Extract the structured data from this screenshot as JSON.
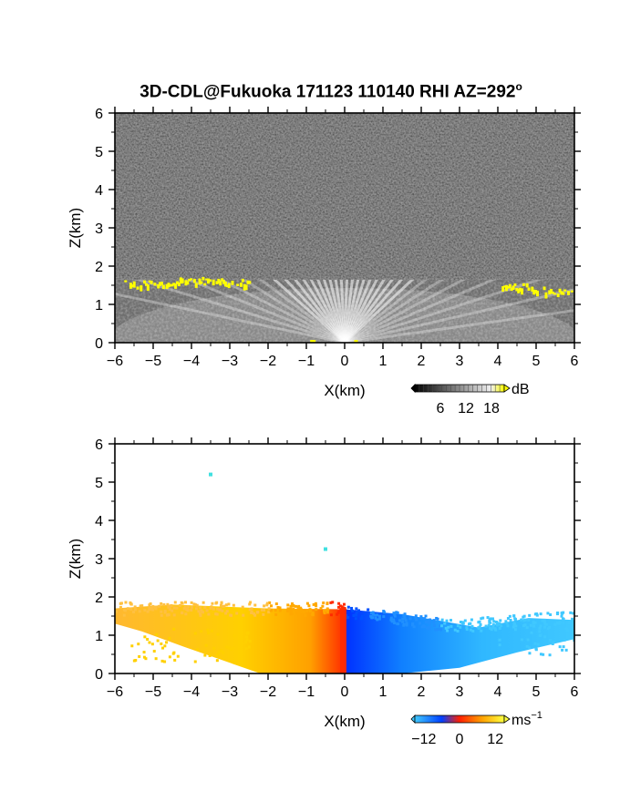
{
  "chart_data": [
    {
      "type": "heatmap",
      "title": "3D-CDL@Fukuoka 171123 110140 RHI AZ=292",
      "title_degree": "o",
      "xlabel": "X(km)",
      "ylabel": "Z(km)",
      "xlim": [
        -6,
        6
      ],
      "ylim": [
        0,
        6
      ],
      "x_ticks": [
        "-6",
        "-5",
        "-4",
        "-3",
        "-2",
        "-1",
        "0",
        "1",
        "2",
        "3",
        "4",
        "5",
        "6"
      ],
      "y_ticks": [
        "0",
        "1",
        "2",
        "3",
        "4",
        "5",
        "6"
      ],
      "colorbar": {
        "unit": "dB",
        "ticks": [
          "6",
          "12",
          "18"
        ],
        "range": [
          0,
          21
        ]
      },
      "cloud_base_left": [
        [
          -5.7,
          1.55
        ],
        [
          -5.0,
          1.55
        ],
        [
          -4.2,
          1.65
        ],
        [
          -3.0,
          1.6
        ],
        [
          -2.6,
          1.6
        ]
      ],
      "cloud_base_right": [
        [
          4.2,
          1.45
        ],
        [
          4.6,
          1.5
        ],
        [
          5.2,
          1.4
        ],
        [
          5.8,
          1.35
        ]
      ],
      "signal_top_km": 1.65
    },
    {
      "type": "heatmap",
      "title": "",
      "xlabel": "X(km)",
      "ylabel": "Z(km)",
      "xlim": [
        -6,
        6
      ],
      "ylim": [
        0,
        6
      ],
      "x_ticks": [
        "-6",
        "-5",
        "-4",
        "-3",
        "-2",
        "-1",
        "0",
        "1",
        "2",
        "3",
        "4",
        "5",
        "6"
      ],
      "y_ticks": [
        "0",
        "1",
        "2",
        "3",
        "4",
        "5",
        "6"
      ],
      "colorbar": {
        "unit": "ms",
        "unit_exp": "-1",
        "ticks": [
          "-12",
          "0",
          "12"
        ],
        "range": [
          -15,
          15
        ]
      },
      "isolated_points": [
        [
          -3.5,
          5.2
        ],
        [
          -0.5,
          3.25
        ]
      ],
      "echo_top_km": 1.7
    }
  ],
  "colors": {
    "noise_dark": "#222222",
    "cloud_yellow": "#ffff00",
    "velocity_positive": "#ffd000",
    "velocity_zero": "#ff2a00",
    "velocity_negative": "#0050ff",
    "velocity_negative_far": "#40c8ff"
  }
}
